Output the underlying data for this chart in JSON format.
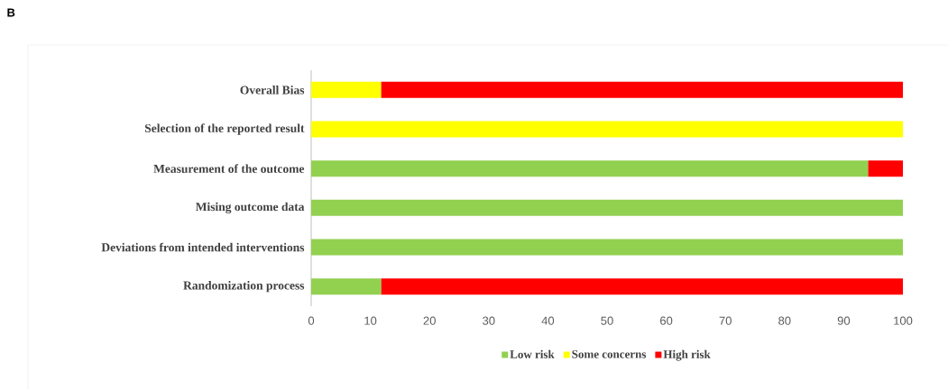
{
  "chart_data": {
    "type": "bar",
    "orientation": "horizontal",
    "stacked": true,
    "title": "B",
    "categories": [
      "Overall Bias",
      "Selection of the reported result",
      "Measurement of the outcome",
      "Mising outcome data",
      "Deviations from intended interventions",
      "Randomization process"
    ],
    "series": [
      {
        "name": "Low risk",
        "color": "#92d050",
        "values": [
          0,
          0,
          94.1,
          100,
          100,
          11.8
        ]
      },
      {
        "name": "Some concerns",
        "color": "#ffff00",
        "values": [
          11.8,
          100,
          0,
          0,
          0,
          0
        ]
      },
      {
        "name": "High risk",
        "color": "#ff0000",
        "values": [
          88.2,
          0,
          5.9,
          0,
          0,
          88.2
        ]
      }
    ],
    "xlim": [
      0,
      100
    ],
    "xticks": [
      0,
      10,
      20,
      30,
      40,
      50,
      60,
      70,
      80,
      90,
      100
    ],
    "legend": "bottom"
  }
}
